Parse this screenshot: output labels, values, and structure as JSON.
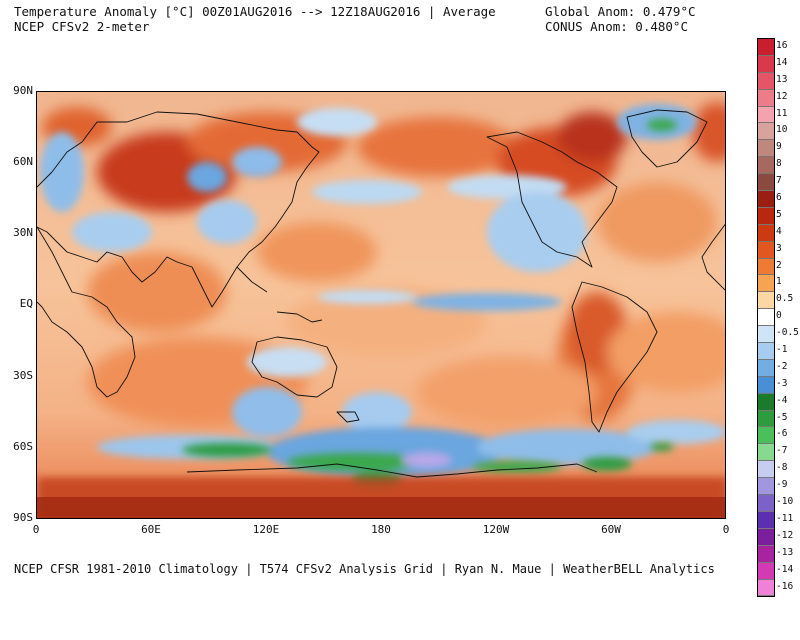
{
  "header": {
    "title_line1": "Temperature Anomaly [°C] 00Z01AUG2016 --> 12Z18AUG2016 | Average",
    "title_line2": "NCEP CFSv2 2-meter",
    "global_anom": "Global Anom: 0.479°C",
    "conus_anom": "CONUS Anom: 0.480°C"
  },
  "axes": {
    "y_ticks": [
      "90N",
      "60N",
      "30N",
      "EQ",
      "30S",
      "60S",
      "90S"
    ],
    "x_ticks": [
      "0",
      "60E",
      "120E",
      "180",
      "120W",
      "60W",
      "0"
    ]
  },
  "colorbar": {
    "labels": [
      "16",
      "14",
      "13",
      "12",
      "11",
      "10",
      "9",
      "8",
      "7",
      "6",
      "5",
      "4",
      "3",
      "2",
      "1",
      "0.5",
      "0",
      "-0.5",
      "-1",
      "-2",
      "-3",
      "-4",
      "-5",
      "-6",
      "-7",
      "-8",
      "-9",
      "-10",
      "-11",
      "-12",
      "-13",
      "-14",
      "-16"
    ],
    "colors": [
      "#c81e2e",
      "#d9394a",
      "#e35567",
      "#ec7c8a",
      "#f2a3ad",
      "#d8a39e",
      "#c0877f",
      "#a6685f",
      "#8b4a3f",
      "#9a1e12",
      "#b7280f",
      "#cc3a12",
      "#e0571f",
      "#ee7a33",
      "#f7a452",
      "#fcd7a4",
      "#ffffff",
      "#cfe4f6",
      "#a6cdef",
      "#73aee3",
      "#4a8ed6",
      "#1c7b2b",
      "#2e9c3d",
      "#4bbf59",
      "#86d98f",
      "#c7cdf0",
      "#a097de",
      "#7a62c9",
      "#5b2fb0",
      "#7b1f9c",
      "#a8249e",
      "#d33bb4",
      "#ef82d6"
    ]
  },
  "footer": "NCEP CFSR 1981-2010 Climatology | T574 CFSv2 Analysis Grid | Ryan N. Maue | WeatherBELL Analytics",
  "map_legend_colors": {
    "warm_orange": "#f3a268",
    "warm_red": "#d9542a",
    "hot_dark": "#9a2412",
    "cool_light": "#b9d8f0",
    "cool_blue": "#5a9ad8",
    "cold_green": "#2f9c42",
    "cold_purple": "#b8a7e8"
  }
}
